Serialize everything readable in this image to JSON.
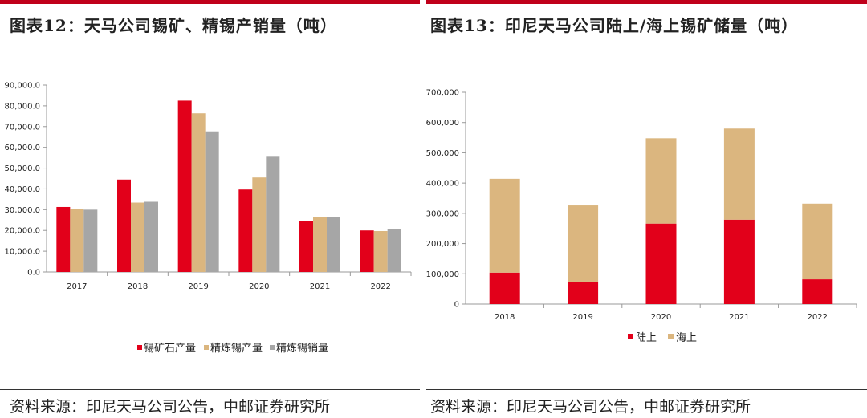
{
  "left_panel": {
    "title": "图表12：天马公司锡矿、精锡产销量（吨）",
    "source": "资料来源：印尼天马公司公告，中邮证券研究所"
  },
  "right_panel": {
    "title": "图表13：印尼天马公司陆上/海上锡矿储量（吨）",
    "source": "资料来源：印尼天马公司公告，中邮证券研究所"
  },
  "colors": {
    "accent": "#c0001a",
    "red": "#e2001a",
    "tan": "#dbb67f",
    "gray": "#a6a6a6"
  },
  "chart_data": [
    {
      "type": "bar",
      "title": "天马公司锡矿、精锡产销量（吨）",
      "categories": [
        "2017",
        "2018",
        "2019",
        "2020",
        "2021",
        "2022"
      ],
      "series": [
        {
          "name": "锡矿石产量",
          "color": "#e2001a",
          "values": [
            31300,
            44500,
            82500,
            39700,
            24600,
            20000
          ]
        },
        {
          "name": "精炼锡产量",
          "color": "#dbb67f",
          "values": [
            30400,
            33400,
            76400,
            45500,
            26400,
            19700
          ]
        },
        {
          "name": "精炼锡销量",
          "color": "#a6a6a6",
          "values": [
            30000,
            33800,
            67700,
            55500,
            26400,
            20600
          ]
        }
      ],
      "yticks": [
        "0.0",
        "10,000.0",
        "20,000.0",
        "30,000.0",
        "40,000.0",
        "50,000.0",
        "60,000.0",
        "70,000.0",
        "80,000.0",
        "90,000.0"
      ],
      "ylim": [
        0,
        90000
      ],
      "legend": "bottom"
    },
    {
      "type": "stacked-bar",
      "title": "印尼天马公司陆上/海上锡矿储量（吨）",
      "categories": [
        "2018",
        "2019",
        "2020",
        "2021",
        "2022"
      ],
      "series": [
        {
          "name": "陆上",
          "color": "#e2001a",
          "values": [
            104000,
            73000,
            266000,
            279000,
            82000
          ]
        },
        {
          "name": "海上",
          "color": "#dbb67f",
          "values": [
            310000,
            253000,
            282000,
            301000,
            250000
          ]
        }
      ],
      "yticks": [
        "0",
        "100,000",
        "200,000",
        "300,000",
        "400,000",
        "500,000",
        "600,000",
        "700,000"
      ],
      "ylim": [
        0,
        700000
      ],
      "legend": "bottom"
    }
  ]
}
